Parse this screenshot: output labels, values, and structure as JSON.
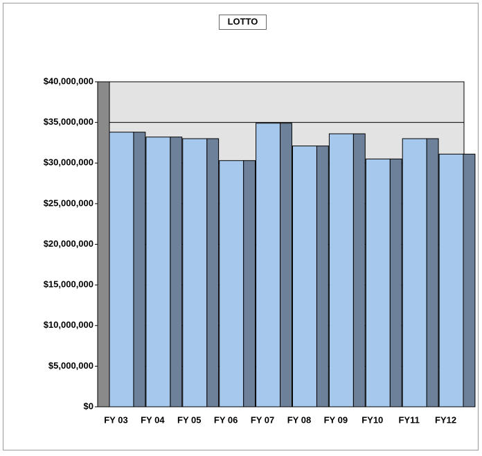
{
  "chart_data": {
    "type": "bar",
    "title": "LOTTO",
    "categories": [
      "FY 03",
      "FY 04",
      "FY 05",
      "FY 06",
      "FY 07",
      "FY 08",
      "FY 09",
      "FY10",
      "FY11",
      "FY12"
    ],
    "values": [
      33800000,
      33200000,
      33000000,
      30300000,
      34900000,
      32100000,
      33600000,
      30500000,
      33000000,
      31100000
    ],
    "color": "#a6c8ec",
    "ylim": [
      0,
      40000000
    ],
    "yticks": [
      {
        "value": 0,
        "label": "$0"
      },
      {
        "value": 5000000,
        "label": "$5,000,000"
      },
      {
        "value": 10000000,
        "label": "$10,000,000"
      },
      {
        "value": 15000000,
        "label": "$15,000,000"
      },
      {
        "value": 20000000,
        "label": "$20,000,000"
      },
      {
        "value": 25000000,
        "label": "$25,000,000"
      },
      {
        "value": 30000000,
        "label": "$30,000,000"
      },
      {
        "value": 35000000,
        "label": "$35,000,000"
      },
      {
        "value": 40000000,
        "label": "$40,000,000"
      }
    ],
    "grid": true
  }
}
